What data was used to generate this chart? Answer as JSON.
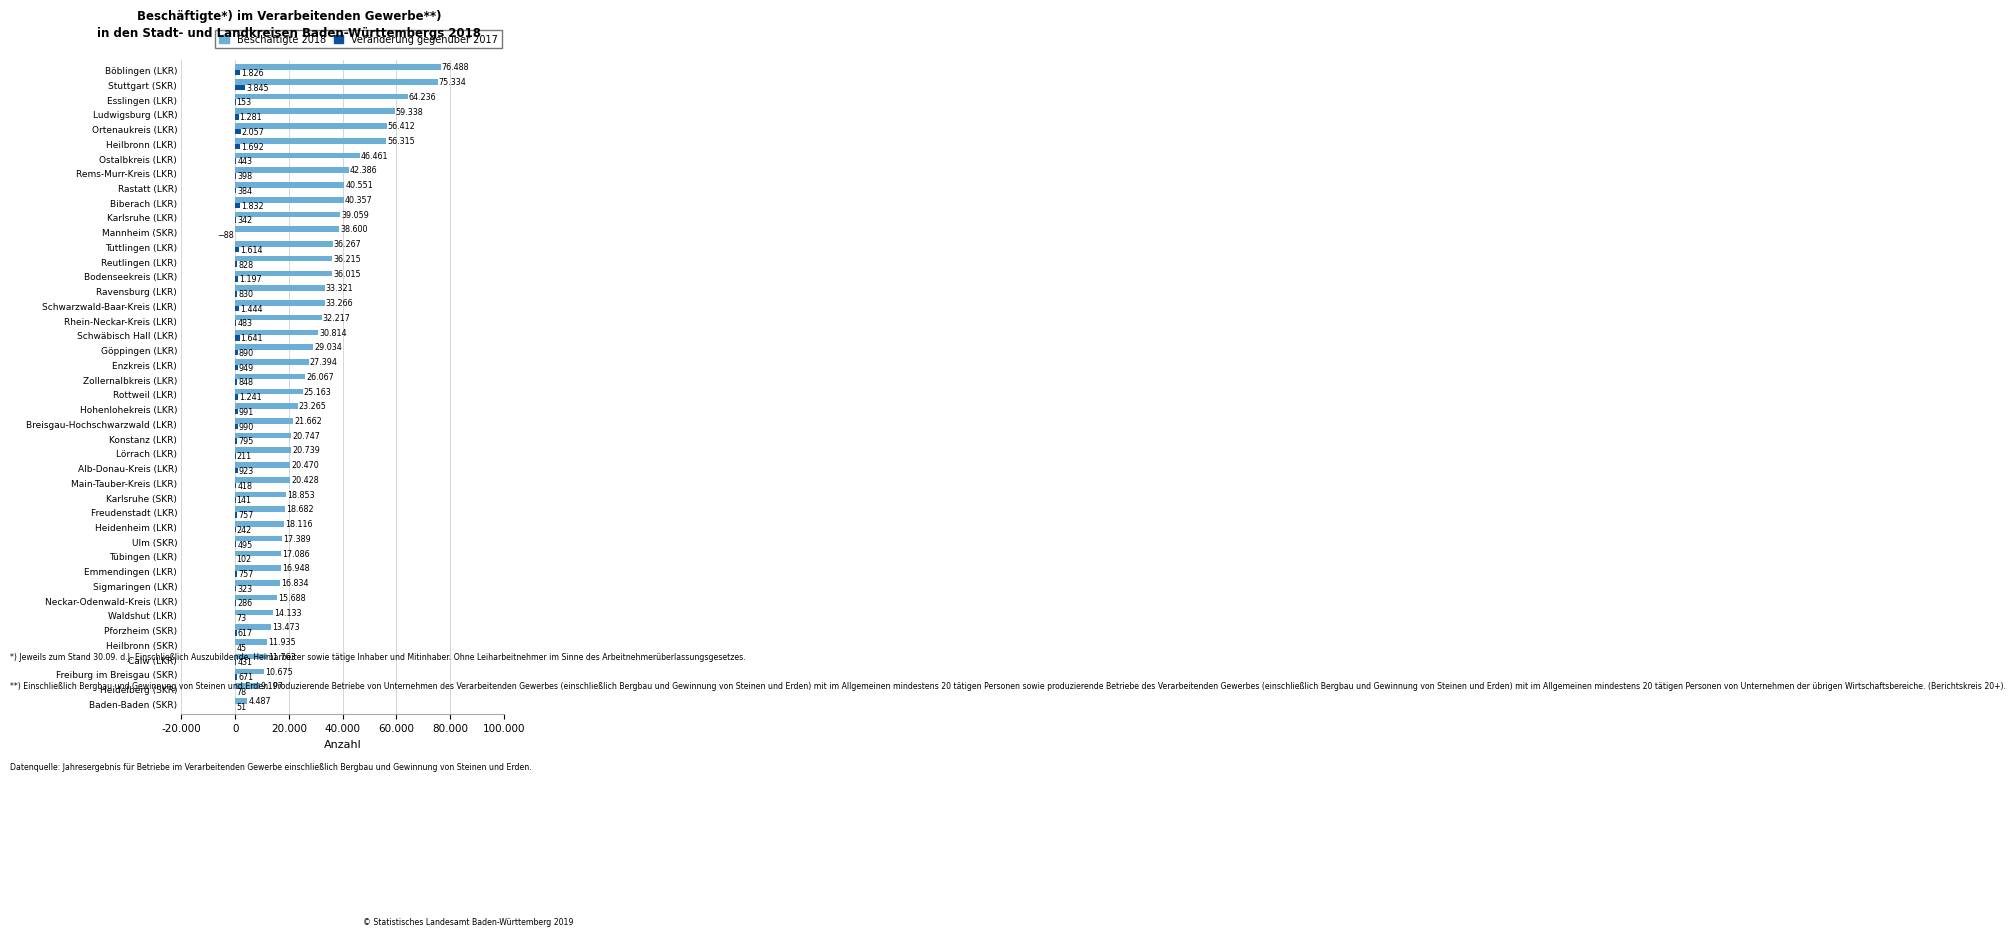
{
  "title_line1": "Beschäftigte*) im Verarbeitenden Gewerbe**)",
  "title_line2": "in den Stadt- und Landkreisen Baden-Württembergs 2018",
  "legend_label1": "Beschäftigte 2018",
  "legend_label2": "Veränderung gegenüber 2017",
  "xlabel": "Anzahl",
  "color_employed": "#6baed6",
  "color_change": "#08519c",
  "color_grid": "#d0d0d0",
  "footnote1": "*) Jeweils zum Stand 30.09. d.J. Einschließlich Auszubildende, Heimarbeiter sowie tätige Inhaber und Mitinhaber. Ohne Leiharbeitnehmer im Sinne des Arbeitnehmerüberlassungsgesetzes.",
  "footnote2": "**) Einschließlich Bergbau und Gewinnung von Steinen und Erden. Produzierende Betriebe von Unternehmen des Verarbeitenden Gewerbes (einschließlich Bergbau und Gewinnung von Steinen und Erden) mit im Allgemeinen mindestens 20 tätigen Personen sowie produzierende Betriebe des Verarbeitenden Gewerbes (einschließlich Bergbau und Gewinnung von Steinen und Erden) mit im Allgemeinen mindestens 20 tätigen Personen von Unternehmen der übrigen Wirtschaftsbereiche. (Berichtskreis 20+).",
  "footnote3": "Datenquelle: Jahresergebnis für Betriebe im Verarbeitenden Gewerbe einschließlich Bergbau und Gewinnung von Steinen und Erden.",
  "copyright": "© Statistisches Landesamt Baden-Württemberg 2019",
  "categories": [
    "Böblingen (LKR)",
    "Stuttgart (SKR)",
    "Esslingen (LKR)",
    "Ludwigsburg (LKR)",
    "Ortenaukreis (LKR)",
    "Heilbronn (LKR)",
    "Ostalbkreis (LKR)",
    "Rems-Murr-Kreis (LKR)",
    "Rastatt (LKR)",
    "Biberach (LKR)",
    "Karlsruhe (LKR)",
    "Mannheim (SKR)",
    "Tuttlingen (LKR)",
    "Reutlingen (LKR)",
    "Bodenseekreis (LKR)",
    "Ravensburg (LKR)",
    "Schwarzwald-Baar-Kreis (LKR)",
    "Rhein-Neckar-Kreis (LKR)",
    "Schwäbisch Hall (LKR)",
    "Göppingen (LKR)",
    "Enzkreis (LKR)",
    "Zollernalbkreis (LKR)",
    "Rottweil (LKR)",
    "Hohenlohekreis (LKR)",
    "Breisgau-Hochschwarzwald (LKR)",
    "Konstanz (LKR)",
    "Lörrach (LKR)",
    "Alb-Donau-Kreis (LKR)",
    "Main-Tauber-Kreis (LKR)",
    "Karlsruhe (SKR)",
    "Freudenstadt (LKR)",
    "Heidenheim (LKR)",
    "Ulm (SKR)",
    "Tübingen (LKR)",
    "Emmendingen (LKR)",
    "Sigmaringen (LKR)",
    "Neckar-Odenwald-Kreis (LKR)",
    "Waldshut (LKR)",
    "Pforzheim (SKR)",
    "Heilbronn (SKR)",
    "Calw (LKR)",
    "Freiburg im Breisgau (SKR)",
    "Heidelberg (SKR)",
    "Baden-Baden (SKR)"
  ],
  "employed": [
    76488,
    75334,
    64236,
    59338,
    56412,
    56315,
    46461,
    42386,
    40551,
    40357,
    39059,
    38600,
    36267,
    36215,
    36015,
    33321,
    33266,
    32217,
    30814,
    29034,
    27394,
    26067,
    25163,
    23265,
    21662,
    20747,
    20739,
    20470,
    20428,
    18853,
    18682,
    18116,
    17389,
    17086,
    16948,
    16834,
    15688,
    14133,
    13473,
    11935,
    11763,
    10675,
    9197,
    4487
  ],
  "change": [
    1826,
    3845,
    153,
    1281,
    2057,
    1692,
    443,
    398,
    384,
    1832,
    342,
    -88,
    1614,
    828,
    1197,
    830,
    1444,
    483,
    1641,
    890,
    949,
    848,
    1241,
    991,
    990,
    795,
    211,
    923,
    418,
    141,
    757,
    242,
    495,
    102,
    757,
    323,
    286,
    73,
    617,
    45,
    431,
    671,
    78,
    51
  ],
  "xlim": [
    -20000,
    100000
  ],
  "xtick_step": 20000,
  "bar_height": 0.38,
  "label_fontsize": 5.8,
  "ytick_fontsize": 6.5,
  "title_fontsize": 8.5,
  "legend_fontsize": 7.0,
  "footnote_fontsize": 5.6,
  "xlabel_fontsize": 8.0
}
